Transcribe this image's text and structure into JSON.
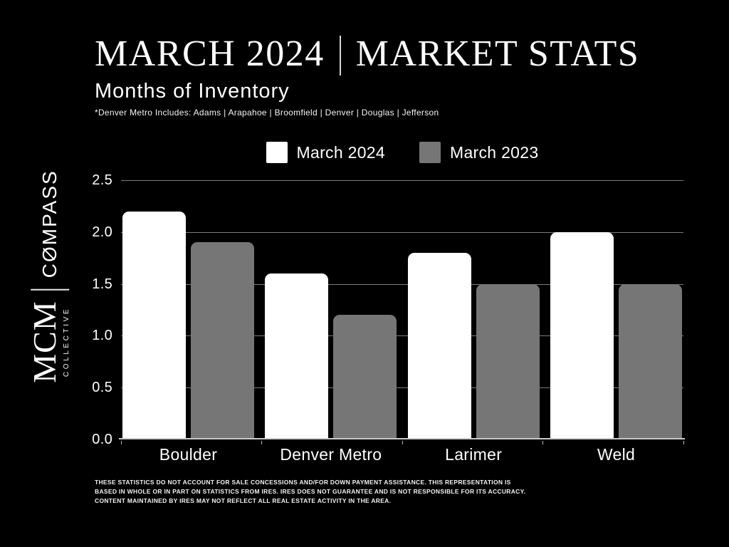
{
  "header": {
    "title_part1": "MARCH 2024",
    "title_part2": "MARKET STATS",
    "subtitle": "Months of Inventory",
    "footnote": "*Denver Metro Includes: Adams | Arapahoe | Broomfield | Denver | Douglas | Jefferson"
  },
  "brand": {
    "mcm": "MCM",
    "collective": "COLLECTIVE",
    "compass": "COMPASS"
  },
  "chart_data": {
    "type": "bar",
    "title": "Months of Inventory",
    "categories": [
      "Boulder",
      "Denver Metro",
      "Larimer",
      "Weld"
    ],
    "series": [
      {
        "name": "March 2024",
        "color": "#ffffff",
        "values": [
          2.2,
          1.6,
          1.8,
          2.0
        ]
      },
      {
        "name": "March 2023",
        "color": "#767676",
        "values": [
          1.9,
          1.2,
          1.5,
          1.5
        ]
      }
    ],
    "ylim": [
      0,
      2.5
    ],
    "yticks": [
      0.0,
      0.5,
      1.0,
      1.5,
      2.0,
      2.5
    ],
    "grid": true,
    "legend_position": "top center",
    "background": "#000000"
  },
  "footer": {
    "disclaimer": "THESE STATISTICS DO NOT ACCOUNT FOR SALE CONCESSIONS AND/FOR DOWN PAYMENT ASSISTANCE. THIS REPRESENTATION IS BASED IN WHOLE OR IN PART ON STATISTICS FROM IRES. IRES DOES NOT GUARANTEE AND IS NOT RESPONSIBLE FOR ITS ACCURACY. CONTENT MAINTAINED BY IRES MAY NOT REFLECT ALL REAL ESTATE ACTIVITY IN THE AREA."
  },
  "colors": {
    "background": "#000000",
    "bar_march_2024": "#ffffff",
    "bar_march_2023": "#767676",
    "gridline": "#7d7d7d",
    "axis_line": "#c9c9c9",
    "text": "#ffffff"
  }
}
